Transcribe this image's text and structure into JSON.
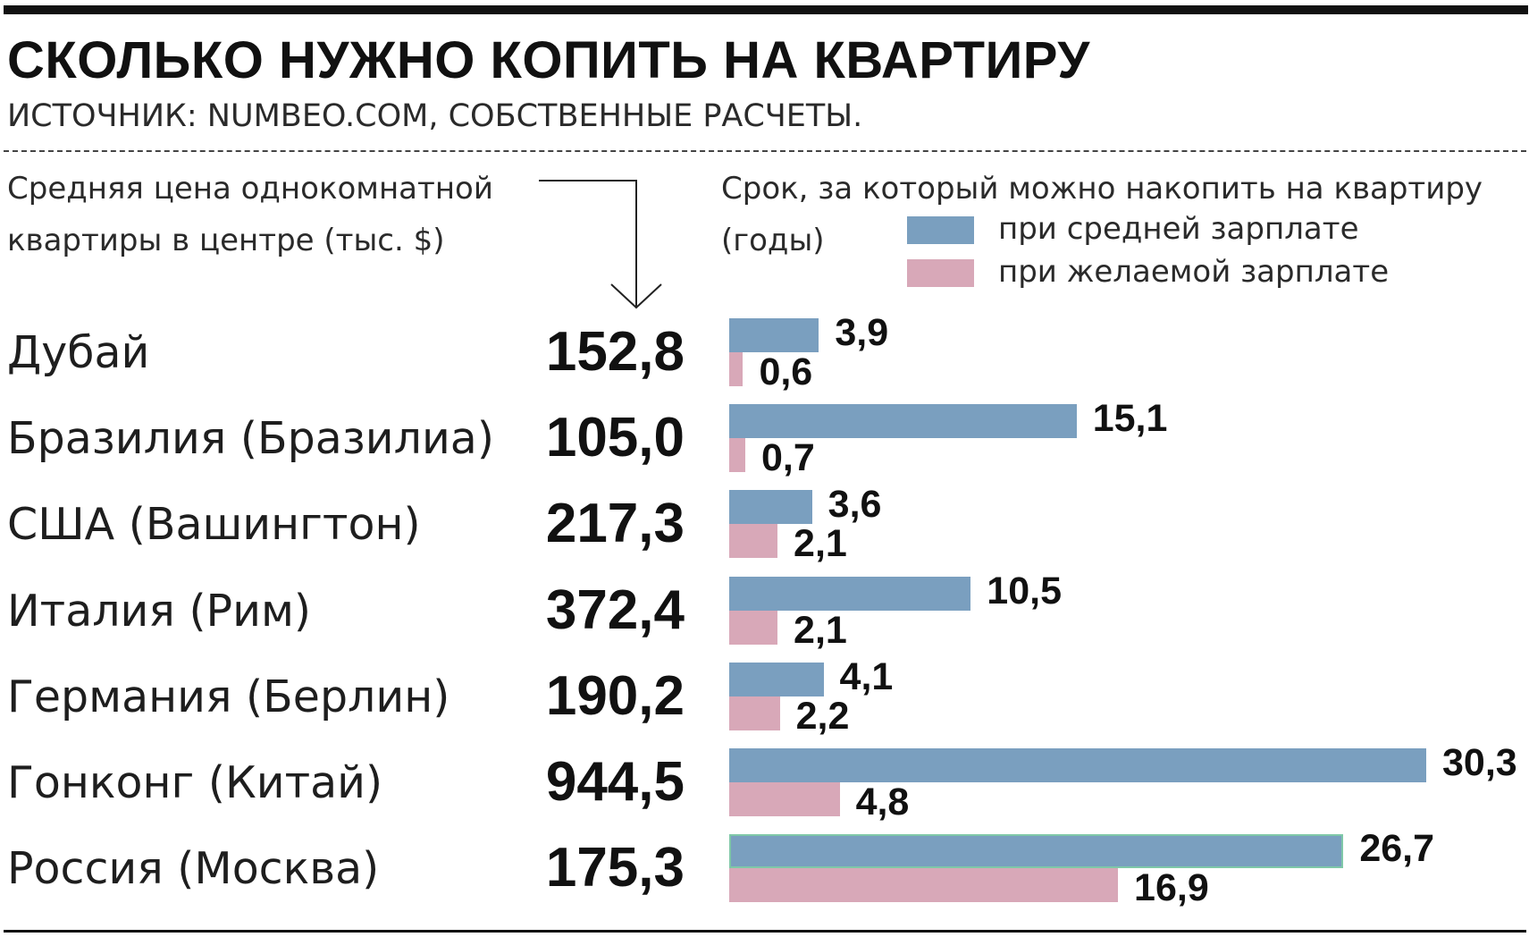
{
  "title": "СКОЛЬКО НУЖНО КОПИТЬ НА КВАРТИРУ",
  "source": "ИСТОЧНИК: NUMBEO.COM, СОБСТВЕННЫЕ РАСЧЕТЫ.",
  "left_header": {
    "line1": "Средняя цена однокомнатной",
    "line2": "квартиры в центре (тыс. $)"
  },
  "right_header": {
    "line1": "Срок, за который можно накопить на квартиру",
    "line2": "(годы)"
  },
  "legend": {
    "avg": "при средней зарплате",
    "desired": "при желаемой зарплате"
  },
  "colors": {
    "avg": "#7a9fbf",
    "desired": "#d8a8b8"
  },
  "chart_data": {
    "type": "bar",
    "orientation": "horizontal",
    "categories": [
      "Дубай",
      "Бразилия (Бразилиа)",
      "США (Вашингтон)",
      "Италия (Рим)",
      "Германия (Берлин)",
      "Гонконг (Китай)",
      "Россия (Москва)"
    ],
    "prices": [
      "152,8",
      "105,0",
      "217,3",
      "372,4",
      "190,2",
      "944,5",
      "175,3"
    ],
    "series": [
      {
        "name": "при средней зарплате",
        "values": [
          3.9,
          15.1,
          3.6,
          10.5,
          4.1,
          30.3,
          26.7
        ],
        "labels": [
          "3,9",
          "15,1",
          "3,6",
          "10,5",
          "4,1",
          "30,3",
          "26,7"
        ]
      },
      {
        "name": "при желаемой зарплате",
        "values": [
          0.6,
          0.7,
          2.1,
          2.1,
          2.2,
          4.8,
          16.9
        ],
        "labels": [
          "0,6",
          "0,7",
          "2,1",
          "2,1",
          "2,2",
          "4,8",
          "16,9"
        ]
      }
    ],
    "xlim": [
      0,
      30.3
    ]
  }
}
